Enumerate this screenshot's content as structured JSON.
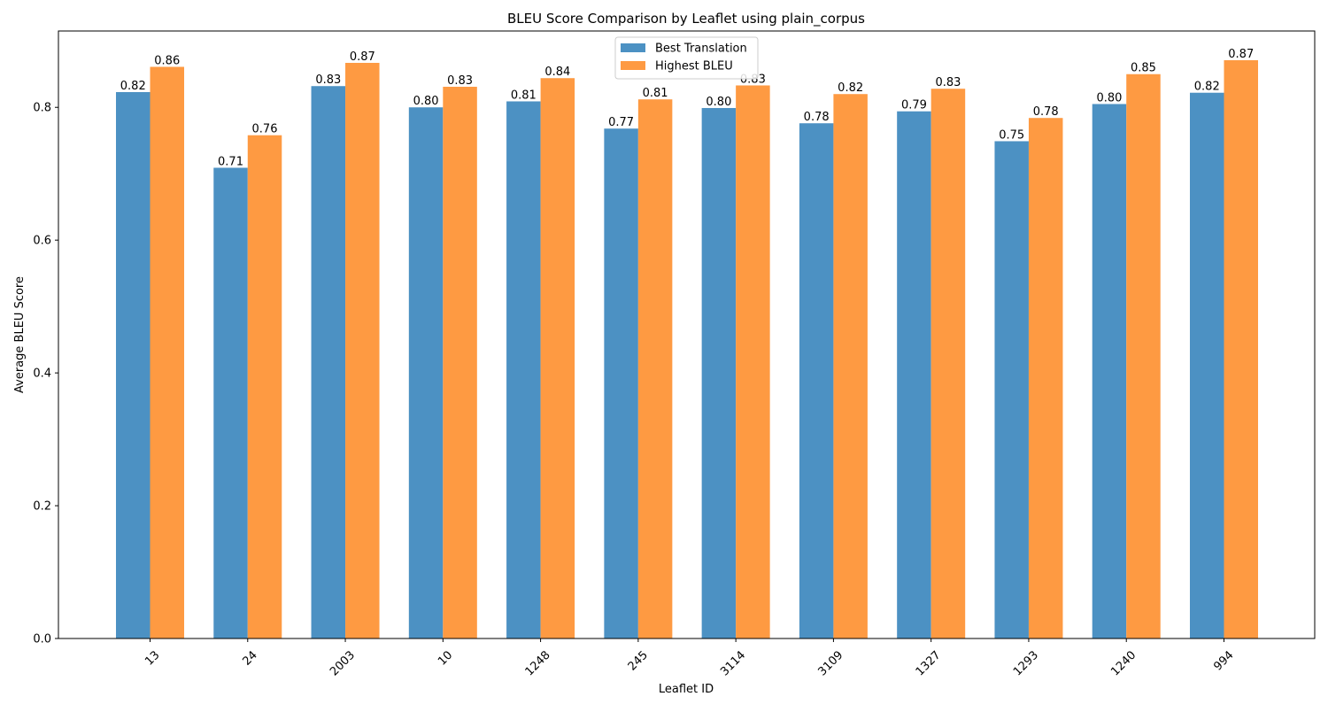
{
  "chart_data": {
    "type": "bar",
    "title": "BLEU Score Comparison by Leaflet using plain_corpus",
    "xlabel": "Leaflet ID",
    "ylabel": "Average BLEU Score",
    "categories": [
      "13",
      "24",
      "2003",
      "10",
      "1248",
      "245",
      "3114",
      "3109",
      "1327",
      "1293",
      "1240",
      "994"
    ],
    "series": [
      {
        "name": "Best Translation",
        "color": "#4c91c3",
        "values": [
          0.823,
          0.709,
          0.832,
          0.8,
          0.809,
          0.768,
          0.799,
          0.776,
          0.794,
          0.749,
          0.805,
          0.822
        ],
        "labels": [
          "0.82",
          "0.71",
          "0.83",
          "0.80",
          "0.81",
          "0.77",
          "0.80",
          "0.78",
          "0.79",
          "0.75",
          "0.80",
          "0.82"
        ]
      },
      {
        "name": "Highest BLEU",
        "color": "#fe9a42",
        "values": [
          0.861,
          0.758,
          0.867,
          0.831,
          0.844,
          0.812,
          0.833,
          0.82,
          0.828,
          0.784,
          0.85,
          0.871
        ],
        "labels": [
          "0.86",
          "0.76",
          "0.87",
          "0.83",
          "0.84",
          "0.81",
          "0.83",
          "0.82",
          "0.83",
          "0.78",
          "0.85",
          "0.87"
        ]
      }
    ],
    "ylim": [
      0,
      0.915
    ],
    "yticks": [
      0.0,
      0.2,
      0.4,
      0.6,
      0.8
    ],
    "ytick_labels": [
      "0.0",
      "0.2",
      "0.4",
      "0.6",
      "0.8"
    ],
    "grid": false,
    "legend_position": "top-center",
    "xtick_rotation_deg": -45
  }
}
